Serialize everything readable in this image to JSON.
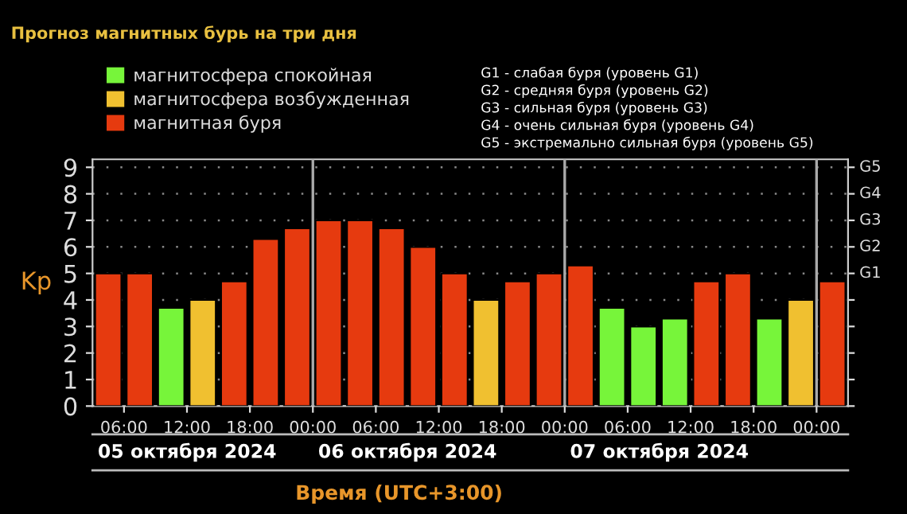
{
  "chart_data": {
    "type": "bar",
    "title": "Прогноз магнитных бурь на три дня",
    "ylabel": "Kp",
    "xlabel": "Время (UTC+3:00)",
    "x": [
      "2024-10-05T04:30",
      "2024-10-05T07:30",
      "2024-10-05T10:30",
      "2024-10-05T13:30",
      "2024-10-05T16:30",
      "2024-10-05T19:30",
      "2024-10-05T22:30",
      "2024-10-06T01:30",
      "2024-10-06T04:30",
      "2024-10-06T07:30",
      "2024-10-06T10:30",
      "2024-10-06T13:30",
      "2024-10-06T16:30",
      "2024-10-06T19:30",
      "2024-10-06T22:30",
      "2024-10-07T01:30",
      "2024-10-07T04:30",
      "2024-10-07T07:30",
      "2024-10-07T10:30",
      "2024-10-07T13:30",
      "2024-10-07T16:30",
      "2024-10-07T19:30",
      "2024-10-07T22:30",
      "2024-10-08T01:30"
    ],
    "series": [
      {
        "name": "магнитосфера спокойная",
        "color": "#77f53a",
        "values": [
          null,
          null,
          3.7,
          null,
          null,
          null,
          null,
          null,
          null,
          null,
          null,
          null,
          null,
          null,
          null,
          null,
          3.7,
          3,
          3.3,
          null,
          null,
          3.3,
          null,
          null
        ]
      },
      {
        "name": "магнитосфера возбужденная",
        "color": "#f0c030",
        "values": [
          null,
          null,
          null,
          4,
          null,
          null,
          null,
          null,
          null,
          null,
          null,
          null,
          4,
          null,
          null,
          null,
          null,
          null,
          null,
          null,
          null,
          null,
          4,
          null
        ]
      },
      {
        "name": "магнитная буря",
        "color": "#e63a0f",
        "values": [
          5,
          5,
          null,
          null,
          4.7,
          6.3,
          6.7,
          7,
          7,
          6.7,
          6,
          5,
          null,
          4.7,
          5,
          5.3,
          null,
          null,
          null,
          4.7,
          5,
          null,
          null,
          4.7
        ]
      }
    ],
    "xlim": [
      "2024-10-05T03:00",
      "2024-10-08T03:00"
    ],
    "xticks": [
      {
        "value": "2024-10-05T06:00",
        "label": "06:00"
      },
      {
        "value": "2024-10-05T12:00",
        "label": "12:00"
      },
      {
        "value": "2024-10-05T18:00",
        "label": "18:00"
      },
      {
        "value": "2024-10-06T00:00",
        "label": "00:00"
      },
      {
        "value": "2024-10-06T06:00",
        "label": "06:00"
      },
      {
        "value": "2024-10-06T12:00",
        "label": "12:00"
      },
      {
        "value": "2024-10-06T18:00",
        "label": "18:00"
      },
      {
        "value": "2024-10-07T00:00",
        "label": "00:00"
      },
      {
        "value": "2024-10-07T06:00",
        "label": "06:00"
      },
      {
        "value": "2024-10-07T12:00",
        "label": "12:00"
      },
      {
        "value": "2024-10-07T18:00",
        "label": "18:00"
      },
      {
        "value": "2024-10-08T00:00",
        "label": "00:00"
      }
    ],
    "ylim": [
      0,
      9.3
    ],
    "yticks": [
      0,
      1,
      2,
      3,
      4,
      5,
      6,
      7,
      8,
      9
    ],
    "ref_lines": [
      {
        "axis": "x",
        "value": "2024-10-06T00:00",
        "color": "#aaaaaa"
      },
      {
        "axis": "x",
        "value": "2024-10-07T00:00",
        "color": "#aaaaaa"
      },
      {
        "axis": "x",
        "value": "2024-10-08T00:00",
        "color": "#aaaaaa"
      }
    ],
    "grid": "y",
    "legend": "top left",
    "annotations": [
      "G1 - слабая буря (уровень G1)",
      "G2 - средняя буря (уровень G2)",
      "G3 - сильная буря (уровень G3)",
      "G4 - очень сильная буря (уровень G4)",
      "G5 - экстремально сильная буря (уровень G5)",
      "05 октября 2024",
      "06 октября 2024",
      "07 октября 2024",
      "G1",
      "G2",
      "G3",
      "G4",
      "G5"
    ]
  }
}
